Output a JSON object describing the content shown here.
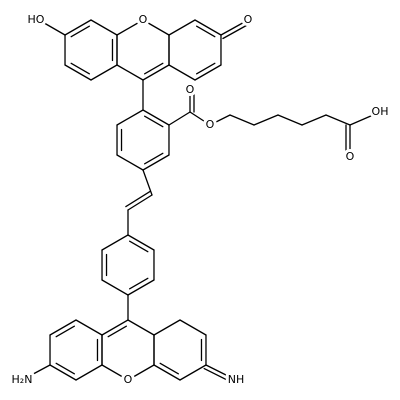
{
  "molecule": {
    "labels": [
      "HO",
      "O",
      "O",
      "O",
      "O",
      "OH",
      "O",
      "H₂N",
      "O",
      "NH"
    ]
  }
}
